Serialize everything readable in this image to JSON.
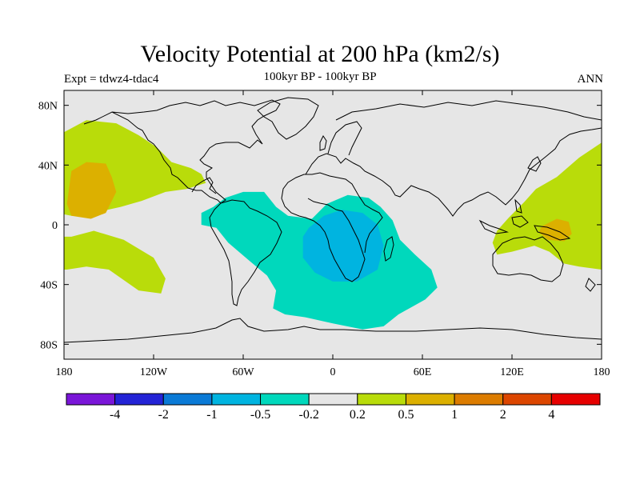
{
  "title": "Velocity Potential at 200 hPa (km2/s)",
  "left_label": "Expt = tdwz4-tdac4",
  "center_label": "100kyr BP - 100kyr BP",
  "right_label": "ANN",
  "map": {
    "projection": "cylindrical-equidistant",
    "lon_range": [
      -180,
      180
    ],
    "lat_range": [
      -90,
      90
    ],
    "x_ticks": [
      {
        "lon": -180,
        "label": "180"
      },
      {
        "lon": -120,
        "label": "120W"
      },
      {
        "lon": -60,
        "label": "60W"
      },
      {
        "lon": 0,
        "label": "0"
      },
      {
        "lon": 60,
        "label": "60E"
      },
      {
        "lon": 120,
        "label": "120E"
      },
      {
        "lon": 180,
        "label": "180"
      }
    ],
    "y_ticks": [
      {
        "lat": 80,
        "label": "80N"
      },
      {
        "lat": 40,
        "label": "40N"
      },
      {
        "lat": 0,
        "label": "0"
      },
      {
        "lat": -40,
        "label": "40S"
      },
      {
        "lat": -80,
        "label": "80S"
      }
    ],
    "background_color": "#e6e6e6",
    "coastline_color": "#000000"
  },
  "colorbar": {
    "colors": [
      "#7a16d8",
      "#2323d6",
      "#0a7ad6",
      "#00b4e0",
      "#00d8bc",
      "#e6e6e6",
      "#b9dc0a",
      "#dcb000",
      "#dc7c00",
      "#dc4600",
      "#e60000"
    ],
    "labels": [
      "-4",
      "-2",
      "-1",
      "-0.5",
      "-0.2",
      "0.2",
      "0.5",
      "1",
      "2",
      "4"
    ]
  },
  "chart_data": {
    "type": "heatmap",
    "title": "Velocity Potential at 200 hPa (km2/s)",
    "levels": [
      -4,
      -2,
      -1,
      -0.5,
      -0.2,
      0.2,
      0.5,
      1,
      2,
      4
    ],
    "regions": [
      {
        "name": "North Pacific positive",
        "range": [
          0.2,
          0.5
        ],
        "polygon": [
          [
            -180,
            62
          ],
          [
            -165,
            70
          ],
          [
            -145,
            68
          ],
          [
            -130,
            60
          ],
          [
            -118,
            52
          ],
          [
            -108,
            42
          ],
          [
            -95,
            38
          ],
          [
            -88,
            34
          ],
          [
            -85,
            28
          ],
          [
            -98,
            24
          ],
          [
            -112,
            22
          ],
          [
            -128,
            16
          ],
          [
            -142,
            12
          ],
          [
            -160,
            8
          ],
          [
            -175,
            6
          ],
          [
            -180,
            7
          ]
        ]
      },
      {
        "name": "North Pacific core",
        "range": [
          0.5,
          1
        ],
        "polygon": [
          [
            -175,
            36
          ],
          [
            -165,
            42
          ],
          [
            -152,
            41
          ],
          [
            -148,
            32
          ],
          [
            -145,
            22
          ],
          [
            -152,
            8
          ],
          [
            -162,
            4
          ],
          [
            -175,
            6
          ],
          [
            -178,
            14
          ]
        ]
      },
      {
        "name": "South Pacific positive",
        "range": [
          0.2,
          0.5
        ],
        "polygon": [
          [
            -175,
            -8
          ],
          [
            -160,
            -4
          ],
          [
            -140,
            -10
          ],
          [
            -120,
            -22
          ],
          [
            -112,
            -36
          ],
          [
            -115,
            -46
          ],
          [
            -130,
            -44
          ],
          [
            -150,
            -30
          ],
          [
            -165,
            -28
          ],
          [
            -178,
            -30
          ],
          [
            -180,
            -30
          ],
          [
            -180,
            -8
          ]
        ]
      },
      {
        "name": "West Pacific positive",
        "range": [
          0.2,
          0.5
        ],
        "polygon": [
          [
            180,
            55
          ],
          [
            165,
            45
          ],
          [
            150,
            32
          ],
          [
            136,
            24
          ],
          [
            128,
            15
          ],
          [
            118,
            5
          ],
          [
            110,
            -4
          ],
          [
            107,
            -12
          ],
          [
            110,
            -20
          ],
          [
            120,
            -18
          ],
          [
            135,
            -14
          ],
          [
            145,
            -18
          ],
          [
            155,
            -26
          ],
          [
            165,
            -28
          ],
          [
            180,
            -30
          ]
        ]
      },
      {
        "name": "West Pacific core",
        "range": [
          0.5,
          1
        ],
        "polygon": [
          [
            140,
            -1
          ],
          [
            150,
            4
          ],
          [
            158,
            2
          ],
          [
            160,
            -6
          ],
          [
            155,
            -11
          ],
          [
            144,
            -10
          ],
          [
            138,
            -5
          ]
        ]
      },
      {
        "name": "Atlantic-Africa negative",
        "range": [
          -0.5,
          -0.2
        ],
        "polygon": [
          [
            -88,
            8
          ],
          [
            -80,
            12
          ],
          [
            -72,
            18
          ],
          [
            -60,
            22
          ],
          [
            -46,
            22
          ],
          [
            -38,
            12
          ],
          [
            -30,
            6
          ],
          [
            -14,
            4
          ],
          [
            -4,
            14
          ],
          [
            10,
            20
          ],
          [
            24,
            18
          ],
          [
            32,
            12
          ],
          [
            40,
            3
          ],
          [
            45,
            -10
          ],
          [
            55,
            -20
          ],
          [
            66,
            -30
          ],
          [
            70,
            -42
          ],
          [
            62,
            -50
          ],
          [
            44,
            -60
          ],
          [
            34,
            -68
          ],
          [
            20,
            -70
          ],
          [
            0,
            -66
          ],
          [
            -18,
            -62
          ],
          [
            -32,
            -60
          ],
          [
            -40,
            -56
          ],
          [
            -38,
            -44
          ],
          [
            -44,
            -34
          ],
          [
            -56,
            -24
          ],
          [
            -70,
            -12
          ],
          [
            -78,
            -2
          ],
          [
            -88,
            0
          ]
        ]
      },
      {
        "name": "Atlantic-Africa core",
        "range": [
          -1,
          -0.5
        ],
        "polygon": [
          [
            -20,
            -8
          ],
          [
            -16,
            -2
          ],
          [
            -6,
            6
          ],
          [
            6,
            10
          ],
          [
            20,
            8
          ],
          [
            30,
            0
          ],
          [
            34,
            -14
          ],
          [
            30,
            -30
          ],
          [
            16,
            -38
          ],
          [
            0,
            -38
          ],
          [
            -12,
            -32
          ],
          [
            -20,
            -22
          ]
        ]
      }
    ]
  }
}
